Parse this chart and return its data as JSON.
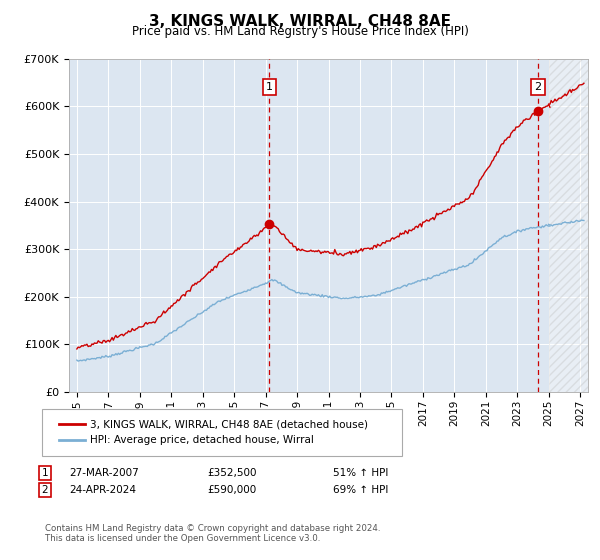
{
  "title": "3, KINGS WALK, WIRRAL, CH48 8AE",
  "subtitle": "Price paid vs. HM Land Registry's House Price Index (HPI)",
  "legend_line1": "3, KINGS WALK, WIRRAL, CH48 8AE (detached house)",
  "legend_line2": "HPI: Average price, detached house, Wirral",
  "sale1_date": "27-MAR-2007",
  "sale1_price": 352500,
  "sale1_pct": "51% ↑ HPI",
  "sale2_date": "24-APR-2024",
  "sale2_price": 590000,
  "sale2_pct": "69% ↑ HPI",
  "sale1_year": 2007.23,
  "sale2_year": 2024.31,
  "hatch_start": 2025.0,
  "hatch_end": 2027.5,
  "ylim_min": 0,
  "ylim_max": 700000,
  "xlim_min": 1994.5,
  "xlim_max": 2027.5,
  "plot_bg_color": "#dce6f1",
  "red_line_color": "#cc0000",
  "blue_line_color": "#7bafd4",
  "footnote": "Contains HM Land Registry data © Crown copyright and database right 2024.\nThis data is licensed under the Open Government Licence v3.0."
}
